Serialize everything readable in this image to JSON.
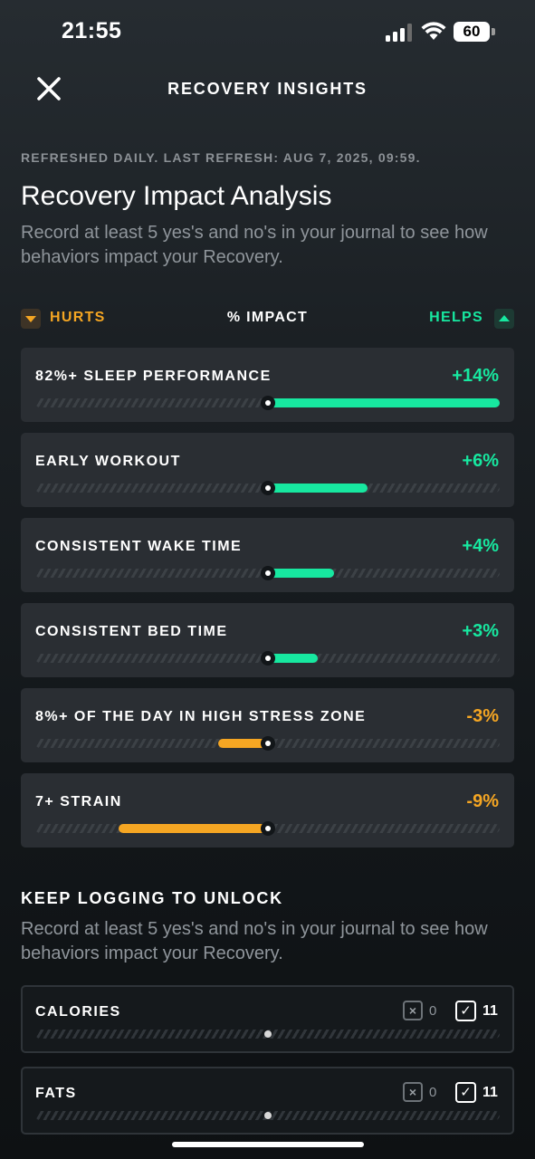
{
  "status_bar": {
    "time": "21:55",
    "battery": "60"
  },
  "header": {
    "title": "RECOVERY INSIGHTS",
    "close_icon": "close-icon"
  },
  "refresh_text": "REFRESHED DAILY. LAST REFRESH: AUG 7, 2025, 09:59.",
  "analysis": {
    "title": "Recovery Impact Analysis",
    "description": "Record at least 5 yes's and no's in your journal to see how behaviors impact your Recovery."
  },
  "legend": {
    "hurts": "HURTS",
    "impact": "% IMPACT",
    "helps": "HELPS"
  },
  "colors": {
    "helps": "#17e8a0",
    "hurts": "#f5a623",
    "card": "#2a2e33"
  },
  "impacts": [
    {
      "label": "82%+ SLEEP PERFORMANCE",
      "value": "+14%",
      "impact": 14
    },
    {
      "label": "EARLY WORKOUT",
      "value": "+6%",
      "impact": 6
    },
    {
      "label": "CONSISTENT WAKE TIME",
      "value": "+4%",
      "impact": 4
    },
    {
      "label": "CONSISTENT BED TIME",
      "value": "+3%",
      "impact": 3
    },
    {
      "label": "8%+ OF THE DAY IN HIGH STRESS ZONE",
      "value": "-3%",
      "impact": -3
    },
    {
      "label": "7+ STRAIN",
      "value": "-9%",
      "impact": -9
    }
  ],
  "unlock": {
    "title": "KEEP LOGGING TO UNLOCK",
    "description": "Record at least 5 yes's and no's in your journal to see how behaviors impact your Recovery.",
    "items": [
      {
        "label": "CALORIES",
        "no_count": "0",
        "yes_count": "11",
        "no_icon": "x-box-icon",
        "yes_icon": "check-box-icon"
      },
      {
        "label": "FATS",
        "no_count": "0",
        "yes_count": "11",
        "no_icon": "x-box-icon",
        "yes_icon": "check-box-icon"
      }
    ]
  }
}
